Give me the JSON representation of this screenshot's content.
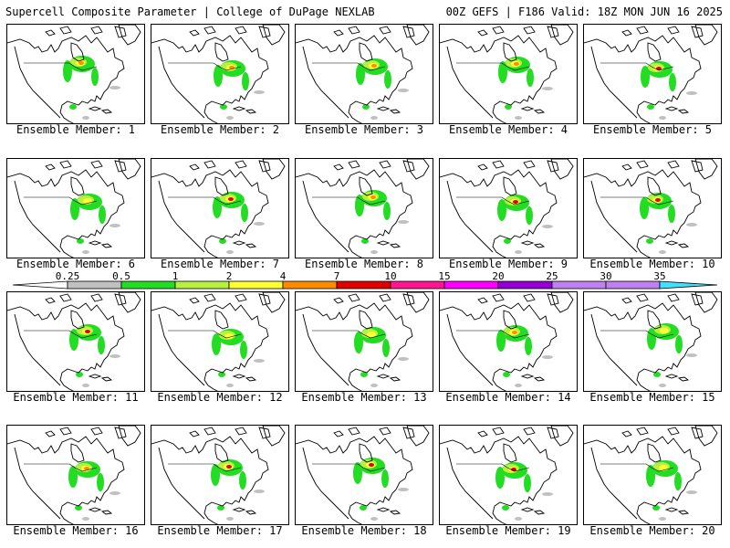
{
  "header": {
    "left": "Supercell Composite Parameter | College of DuPage NEXLAB",
    "right": "00Z GEFS | F186 Valid: 18Z MON JUN 16 2025"
  },
  "caption_prefix": "Ensemble Member: ",
  "members": [
    {
      "label": "Ensemble Member: 1",
      "max_level": "7"
    },
    {
      "label": "Ensemble Member: 2",
      "max_level": "7"
    },
    {
      "label": "Ensemble Member: 3",
      "max_level": "7"
    },
    {
      "label": "Ensemble Member: 4",
      "max_level": "7"
    },
    {
      "label": "Ensemble Member: 5",
      "max_level": "10"
    },
    {
      "label": "Ensemble Member: 6",
      "max_level": "4"
    },
    {
      "label": "Ensemble Member: 7",
      "max_level": "10"
    },
    {
      "label": "Ensemble Member: 8",
      "max_level": "7"
    },
    {
      "label": "Ensemble Member: 9",
      "max_level": "10"
    },
    {
      "label": "Ensemble Member: 10",
      "max_level": "10"
    },
    {
      "label": "Ensemble Member: 11",
      "max_level": "10"
    },
    {
      "label": "Ensemble Member: 12",
      "max_level": "4"
    },
    {
      "label": "Ensemble Member: 13",
      "max_level": "4"
    },
    {
      "label": "Ensemble Member: 14",
      "max_level": "7"
    },
    {
      "label": "Ensemble Member: 15",
      "max_level": "4"
    },
    {
      "label": "Ensemble Member: 16",
      "max_level": "7"
    },
    {
      "label": "Ensemble Member: 17",
      "max_level": "10"
    },
    {
      "label": "Ensemble Member: 18",
      "max_level": "10"
    },
    {
      "label": "Ensemble Member: 19",
      "max_level": "10"
    },
    {
      "label": "Ensemble Member: 20",
      "max_level": "4"
    }
  ],
  "colorbar": {
    "labels": [
      "0.25",
      "0.5",
      "1",
      "2",
      "4",
      "7",
      "10",
      "15",
      "20",
      "25",
      "30",
      "35"
    ],
    "colors": [
      "#ffffff",
      "#c0c0c0",
      "#22dd22",
      "#b8f040",
      "#ffff33",
      "#ff8c00",
      "#e00000",
      "#ff1493",
      "#ff00ff",
      "#9400d3",
      "#c080f0",
      "#40e0ff"
    ]
  }
}
